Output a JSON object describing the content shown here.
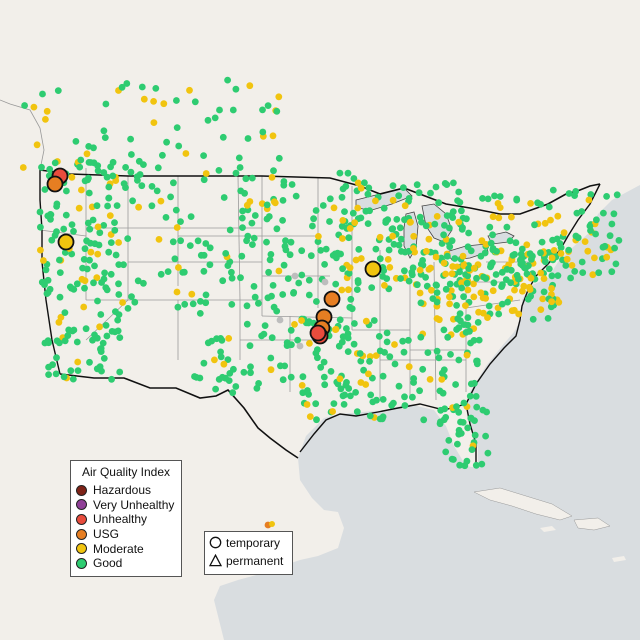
{
  "map": {
    "legend_title": "Air Quality Index",
    "categories": [
      {
        "label": "Hazardous",
        "color": "#7e2317"
      },
      {
        "label": "Very Unhealthy",
        "color": "#8f3f97"
      },
      {
        "label": "Unhealthy",
        "color": "#e84c3d"
      },
      {
        "label": "USG",
        "color": "#e67e22"
      },
      {
        "label": "Moderate",
        "color": "#f1c40f"
      },
      {
        "label": "Good",
        "color": "#2ecc71"
      }
    ],
    "monitor_types": [
      {
        "label": "temporary",
        "icon": "circle-icon"
      },
      {
        "label": "permanent",
        "icon": "triangle-icon"
      }
    ],
    "colors": {
      "land": "#f2efea",
      "land_mexico": "#eeeae2",
      "water": "#d9dde0",
      "border": "#111111",
      "state_line": "#9a9a9a",
      "no_data": "#bdbdbd"
    },
    "large_monitors": [
      {
        "category": "Unhealthy"
      },
      {
        "category": "USG"
      },
      {
        "category": "Moderate"
      },
      {
        "category": "Moderate"
      },
      {
        "category": "USG"
      },
      {
        "category": "USG"
      },
      {
        "category": "USG"
      },
      {
        "category": "Unhealthy"
      },
      {
        "category": "Unhealthy"
      }
    ]
  }
}
